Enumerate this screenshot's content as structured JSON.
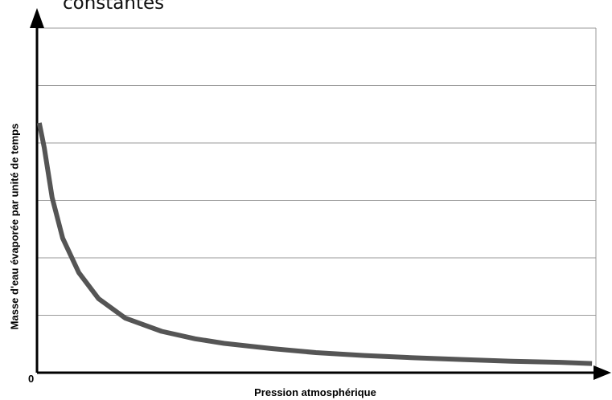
{
  "chart_data": {
    "type": "line",
    "title": "constantes",
    "xlabel": "Pression atmosphérique",
    "ylabel": "Masse d'eau évaporée par unité de temps",
    "origin_label": "0",
    "xlim": [
      0,
      100
    ],
    "ylim": [
      0,
      6
    ],
    "grid": true,
    "series": [
      {
        "color": "#555555",
        "x": [
          0.4,
          1.3,
          2.7,
          4.6,
          7.5,
          11,
          15.8,
          22.3,
          28.3,
          33.5,
          42,
          49.9,
          58.6,
          67.3,
          76.1,
          84.9,
          93.7,
          99.3
        ],
        "y": [
          4.35,
          3.92,
          3.05,
          2.34,
          1.74,
          1.29,
          0.95,
          0.72,
          0.59,
          0.51,
          0.42,
          0.35,
          0.3,
          0.26,
          0.23,
          0.2,
          0.18,
          0.16
        ]
      }
    ]
  }
}
